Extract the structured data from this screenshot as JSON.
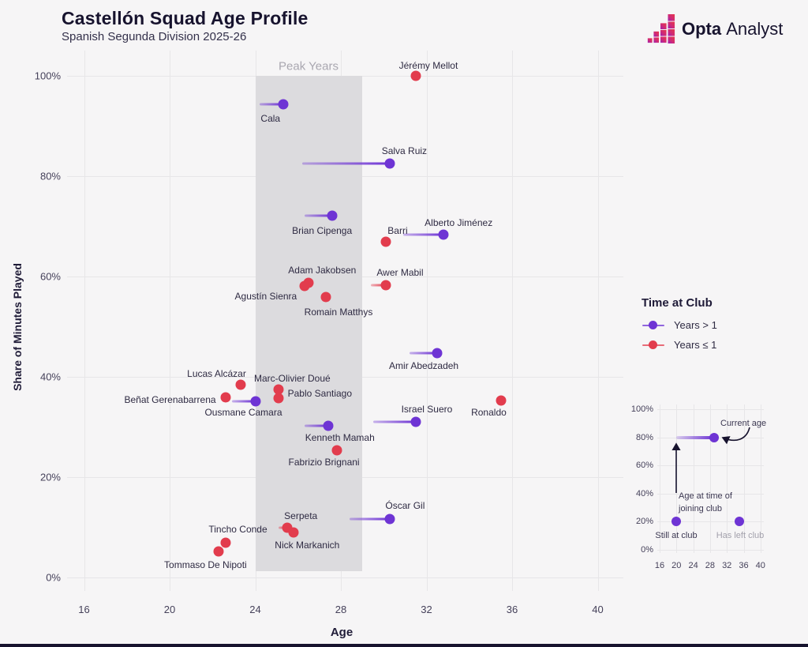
{
  "header": {
    "title": "Castellón Squad Age Profile",
    "subtitle": "Spanish Segunda Division 2025-26",
    "brand": {
      "bold": "Opta",
      "regular": "Analyst"
    }
  },
  "colors": {
    "purple": "#6e34d4",
    "red": "#e23c4d",
    "background": "#f6f5f6",
    "band": "#dcdbde",
    "grid": "#e7e6e8",
    "dark": "#17132e"
  },
  "chart_data": {
    "type": "scatter",
    "title": "Castellón Squad Age Profile",
    "subtitle": "Spanish Segunda Division 2025-26",
    "xlabel": "Age",
    "ylabel": "Share of Minutes Played",
    "xlim": [
      15,
      41
    ],
    "ylim": [
      0,
      100
    ],
    "x_ticks": [
      16,
      20,
      24,
      28,
      32,
      36,
      40
    ],
    "y_ticks": [
      0,
      20,
      40,
      60,
      80,
      100
    ],
    "grid": true,
    "peak_band": {
      "label": "Peak Years",
      "age_start": 24,
      "age_end": 29
    },
    "legend": {
      "title": "Time at Club",
      "position": "right",
      "items": [
        {
          "label": "Years > 1",
          "color": "#6e34d4"
        },
        {
          "label": "Years ≤ 1",
          "color": "#e23c4d"
        }
      ]
    },
    "series": [
      {
        "name": "Years > 1",
        "color": "#6e34d4",
        "points": [
          {
            "name": "Cala",
            "age": 25.3,
            "joined_age": 24.2,
            "minutes_pct": 94.3,
            "dx": -16,
            "dy": 18
          },
          {
            "name": "Salva Ruiz",
            "age": 30.3,
            "joined_age": 26.2,
            "minutes_pct": 82.5,
            "dx": 18,
            "dy": -16
          },
          {
            "name": "Brian Cipenga",
            "age": 27.6,
            "joined_age": 26.3,
            "minutes_pct": 72.1,
            "dx": -13,
            "dy": 19
          },
          {
            "name": "Alberto Jiménez",
            "age": 32.8,
            "joined_age": 30.9,
            "minutes_pct": 68.3,
            "dx": 19,
            "dy": -15
          },
          {
            "name": "Amir Abedzadeh",
            "age": 32.5,
            "joined_age": 31.2,
            "minutes_pct": 44.7,
            "dx": -17,
            "dy": 16
          },
          {
            "name": "Ousmane Camara",
            "age": 24.0,
            "joined_age": 22.9,
            "minutes_pct": 35.1,
            "dx": -15,
            "dy": 14
          },
          {
            "name": "Israel Suero",
            "age": 31.5,
            "joined_age": 29.5,
            "minutes_pct": 31.0,
            "dx": 14,
            "dy": -16
          },
          {
            "name": "Kenneth Mamah",
            "age": 27.4,
            "joined_age": 26.3,
            "minutes_pct": 30.2,
            "dx": 15,
            "dy": 15
          },
          {
            "name": "Óscar Gil",
            "age": 30.3,
            "joined_age": 28.4,
            "minutes_pct": 11.7,
            "dx": 19,
            "dy": -17
          }
        ]
      },
      {
        "name": "Years ≤ 1",
        "color": "#e23c4d",
        "points": [
          {
            "name": "Jérémy Mellot",
            "age": 31.5,
            "joined_age": null,
            "minutes_pct": 100.0,
            "dx": 16,
            "dy": -13
          },
          {
            "name": "Barri",
            "age": 30.1,
            "joined_age": null,
            "minutes_pct": 66.9,
            "dx": 15,
            "dy": -14
          },
          {
            "name": "Adam Jakobsen",
            "age": 26.5,
            "joined_age": null,
            "minutes_pct": 58.7,
            "dx": 17,
            "dy": -16
          },
          {
            "name": "Awer Mabil",
            "age": 30.1,
            "joined_age": 29.4,
            "minutes_pct": 58.3,
            "dx": 18,
            "dy": -16
          },
          {
            "name": "Agustín Sienra",
            "age": 26.3,
            "joined_age": null,
            "minutes_pct": 58.1,
            "dx": -49,
            "dy": 13
          },
          {
            "name": "Romain Matthys",
            "age": 27.3,
            "joined_age": null,
            "minutes_pct": 55.9,
            "dx": 16,
            "dy": 19
          },
          {
            "name": "Lucas Alcázar",
            "age": 23.3,
            "joined_age": null,
            "minutes_pct": 38.4,
            "dx": -30,
            "dy": -14
          },
          {
            "name": "Marc-Olivier Doué",
            "age": 25.1,
            "joined_age": null,
            "minutes_pct": 37.5,
            "dx": 17,
            "dy": -14
          },
          {
            "name": "Beñat Gerenabarrena",
            "age": 22.6,
            "joined_age": null,
            "minutes_pct": 35.9,
            "dx": -70,
            "dy": 3
          },
          {
            "name": "Pablo Santiago",
            "age": 25.1,
            "joined_age": null,
            "minutes_pct": 35.7,
            "dx": 52,
            "dy": -6
          },
          {
            "name": "Ronaldo",
            "age": 35.5,
            "joined_age": null,
            "minutes_pct": 35.3,
            "dx": -16,
            "dy": 15
          },
          {
            "name": "Fabrizio Brignani",
            "age": 27.8,
            "joined_age": null,
            "minutes_pct": 25.4,
            "dx": -16,
            "dy": 15
          },
          {
            "name": "Serpeta",
            "age": 25.5,
            "joined_age": 25.1,
            "minutes_pct": 9.9,
            "dx": 17,
            "dy": -15
          },
          {
            "name": "Nick Markanich",
            "age": 25.8,
            "joined_age": null,
            "minutes_pct": 9.0,
            "dx": 17,
            "dy": 16
          },
          {
            "name": "Tincho Conde",
            "age": 22.6,
            "joined_age": null,
            "minutes_pct": 6.9,
            "dx": 16,
            "dy": -17
          },
          {
            "name": "Tommaso De Nipoti",
            "age": 22.3,
            "joined_age": null,
            "minutes_pct": 5.2,
            "dx": -17,
            "dy": 17
          }
        ]
      }
    ]
  },
  "inset": {
    "x_ticks": [
      16,
      20,
      24,
      28,
      32,
      36,
      40
    ],
    "y_ticks": [
      0,
      20,
      40,
      60,
      80,
      100
    ],
    "example": {
      "joined_age": 20,
      "current_age": 29,
      "pct": 80
    },
    "annotations": {
      "current_age": "Current age",
      "joining_line1": "Age at time of",
      "joining_line2": "joining club",
      "still_at_club": {
        "label": "Still at club",
        "age": 20,
        "pct": 20
      },
      "has_left_club": {
        "label": "Has left club",
        "age": 35,
        "pct": 20
      }
    }
  }
}
